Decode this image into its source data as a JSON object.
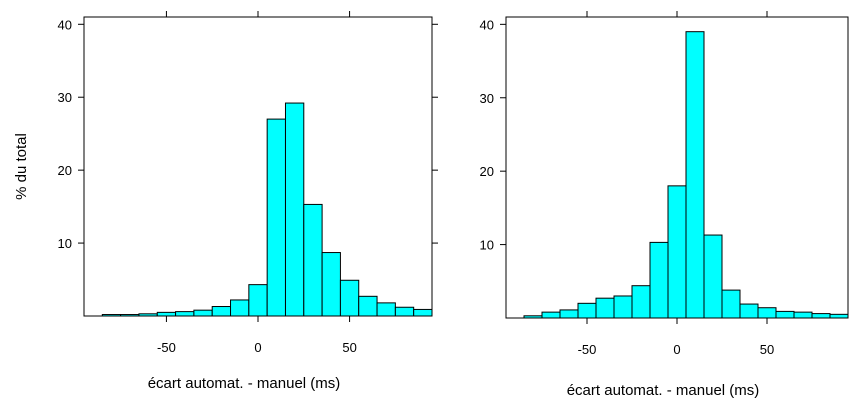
{
  "bar_color": "#00ffff",
  "chart_data": [
    {
      "type": "bar",
      "title": "",
      "xlabel": "écart automat. - manuel (ms)",
      "ylabel": "% du total",
      "xlim": [
        -95,
        95
      ],
      "ylim": [
        0,
        41
      ],
      "x_ticks": [
        -50,
        0,
        50
      ],
      "y_ticks": [
        10,
        20,
        30,
        40
      ],
      "bins": [
        {
          "x0": -85,
          "x1": -75,
          "value": 0.2
        },
        {
          "x0": -75,
          "x1": -65,
          "value": 0.2
        },
        {
          "x0": -65,
          "x1": -55,
          "value": 0.3
        },
        {
          "x0": -55,
          "x1": -45,
          "value": 0.5
        },
        {
          "x0": -45,
          "x1": -35,
          "value": 0.6
        },
        {
          "x0": -35,
          "x1": -25,
          "value": 0.8
        },
        {
          "x0": -25,
          "x1": -15,
          "value": 1.3
        },
        {
          "x0": -15,
          "x1": -5,
          "value": 2.2
        },
        {
          "x0": -5,
          "x1": 5,
          "value": 4.3
        },
        {
          "x0": 5,
          "x1": 15,
          "value": 27.0
        },
        {
          "x0": 15,
          "x1": 25,
          "value": 29.2
        },
        {
          "x0": 25,
          "x1": 35,
          "value": 15.3
        },
        {
          "x0": 35,
          "x1": 45,
          "value": 8.7
        },
        {
          "x0": 45,
          "x1": 55,
          "value": 4.9
        },
        {
          "x0": 55,
          "x1": 65,
          "value": 2.7
        },
        {
          "x0": 65,
          "x1": 75,
          "value": 1.8
        },
        {
          "x0": 75,
          "x1": 85,
          "value": 1.2
        },
        {
          "x0": 85,
          "x1": 95,
          "value": 0.9
        },
        {
          "x0": 95,
          "x1": 105,
          "value": 0.4
        }
      ]
    },
    {
      "type": "bar",
      "title": "",
      "xlabel": "écart automat. - manuel (ms)",
      "ylabel": "",
      "xlim": [
        -95,
        95
      ],
      "ylim": [
        0,
        41
      ],
      "x_ticks": [
        -50,
        0,
        50
      ],
      "y_ticks": [
        10,
        20,
        30,
        40
      ],
      "bins": [
        {
          "x0": -85,
          "x1": -75,
          "value": 0.3
        },
        {
          "x0": -75,
          "x1": -65,
          "value": 0.8
        },
        {
          "x0": -65,
          "x1": -55,
          "value": 1.1
        },
        {
          "x0": -55,
          "x1": -45,
          "value": 2.0
        },
        {
          "x0": -45,
          "x1": -35,
          "value": 2.7
        },
        {
          "x0": -35,
          "x1": -25,
          "value": 3.0
        },
        {
          "x0": -25,
          "x1": -15,
          "value": 4.4
        },
        {
          "x0": -15,
          "x1": -5,
          "value": 10.3
        },
        {
          "x0": -5,
          "x1": 5,
          "value": 18.0
        },
        {
          "x0": 5,
          "x1": 15,
          "value": 39.0
        },
        {
          "x0": 15,
          "x1": 25,
          "value": 11.3
        },
        {
          "x0": 25,
          "x1": 35,
          "value": 3.8
        },
        {
          "x0": 35,
          "x1": 45,
          "value": 1.9
        },
        {
          "x0": 45,
          "x1": 55,
          "value": 1.4
        },
        {
          "x0": 55,
          "x1": 65,
          "value": 0.9
        },
        {
          "x0": 65,
          "x1": 75,
          "value": 0.8
        },
        {
          "x0": 75,
          "x1": 85,
          "value": 0.6
        },
        {
          "x0": 85,
          "x1": 95,
          "value": 0.5
        },
        {
          "x0": 95,
          "x1": 105,
          "value": 0.2
        }
      ]
    }
  ]
}
